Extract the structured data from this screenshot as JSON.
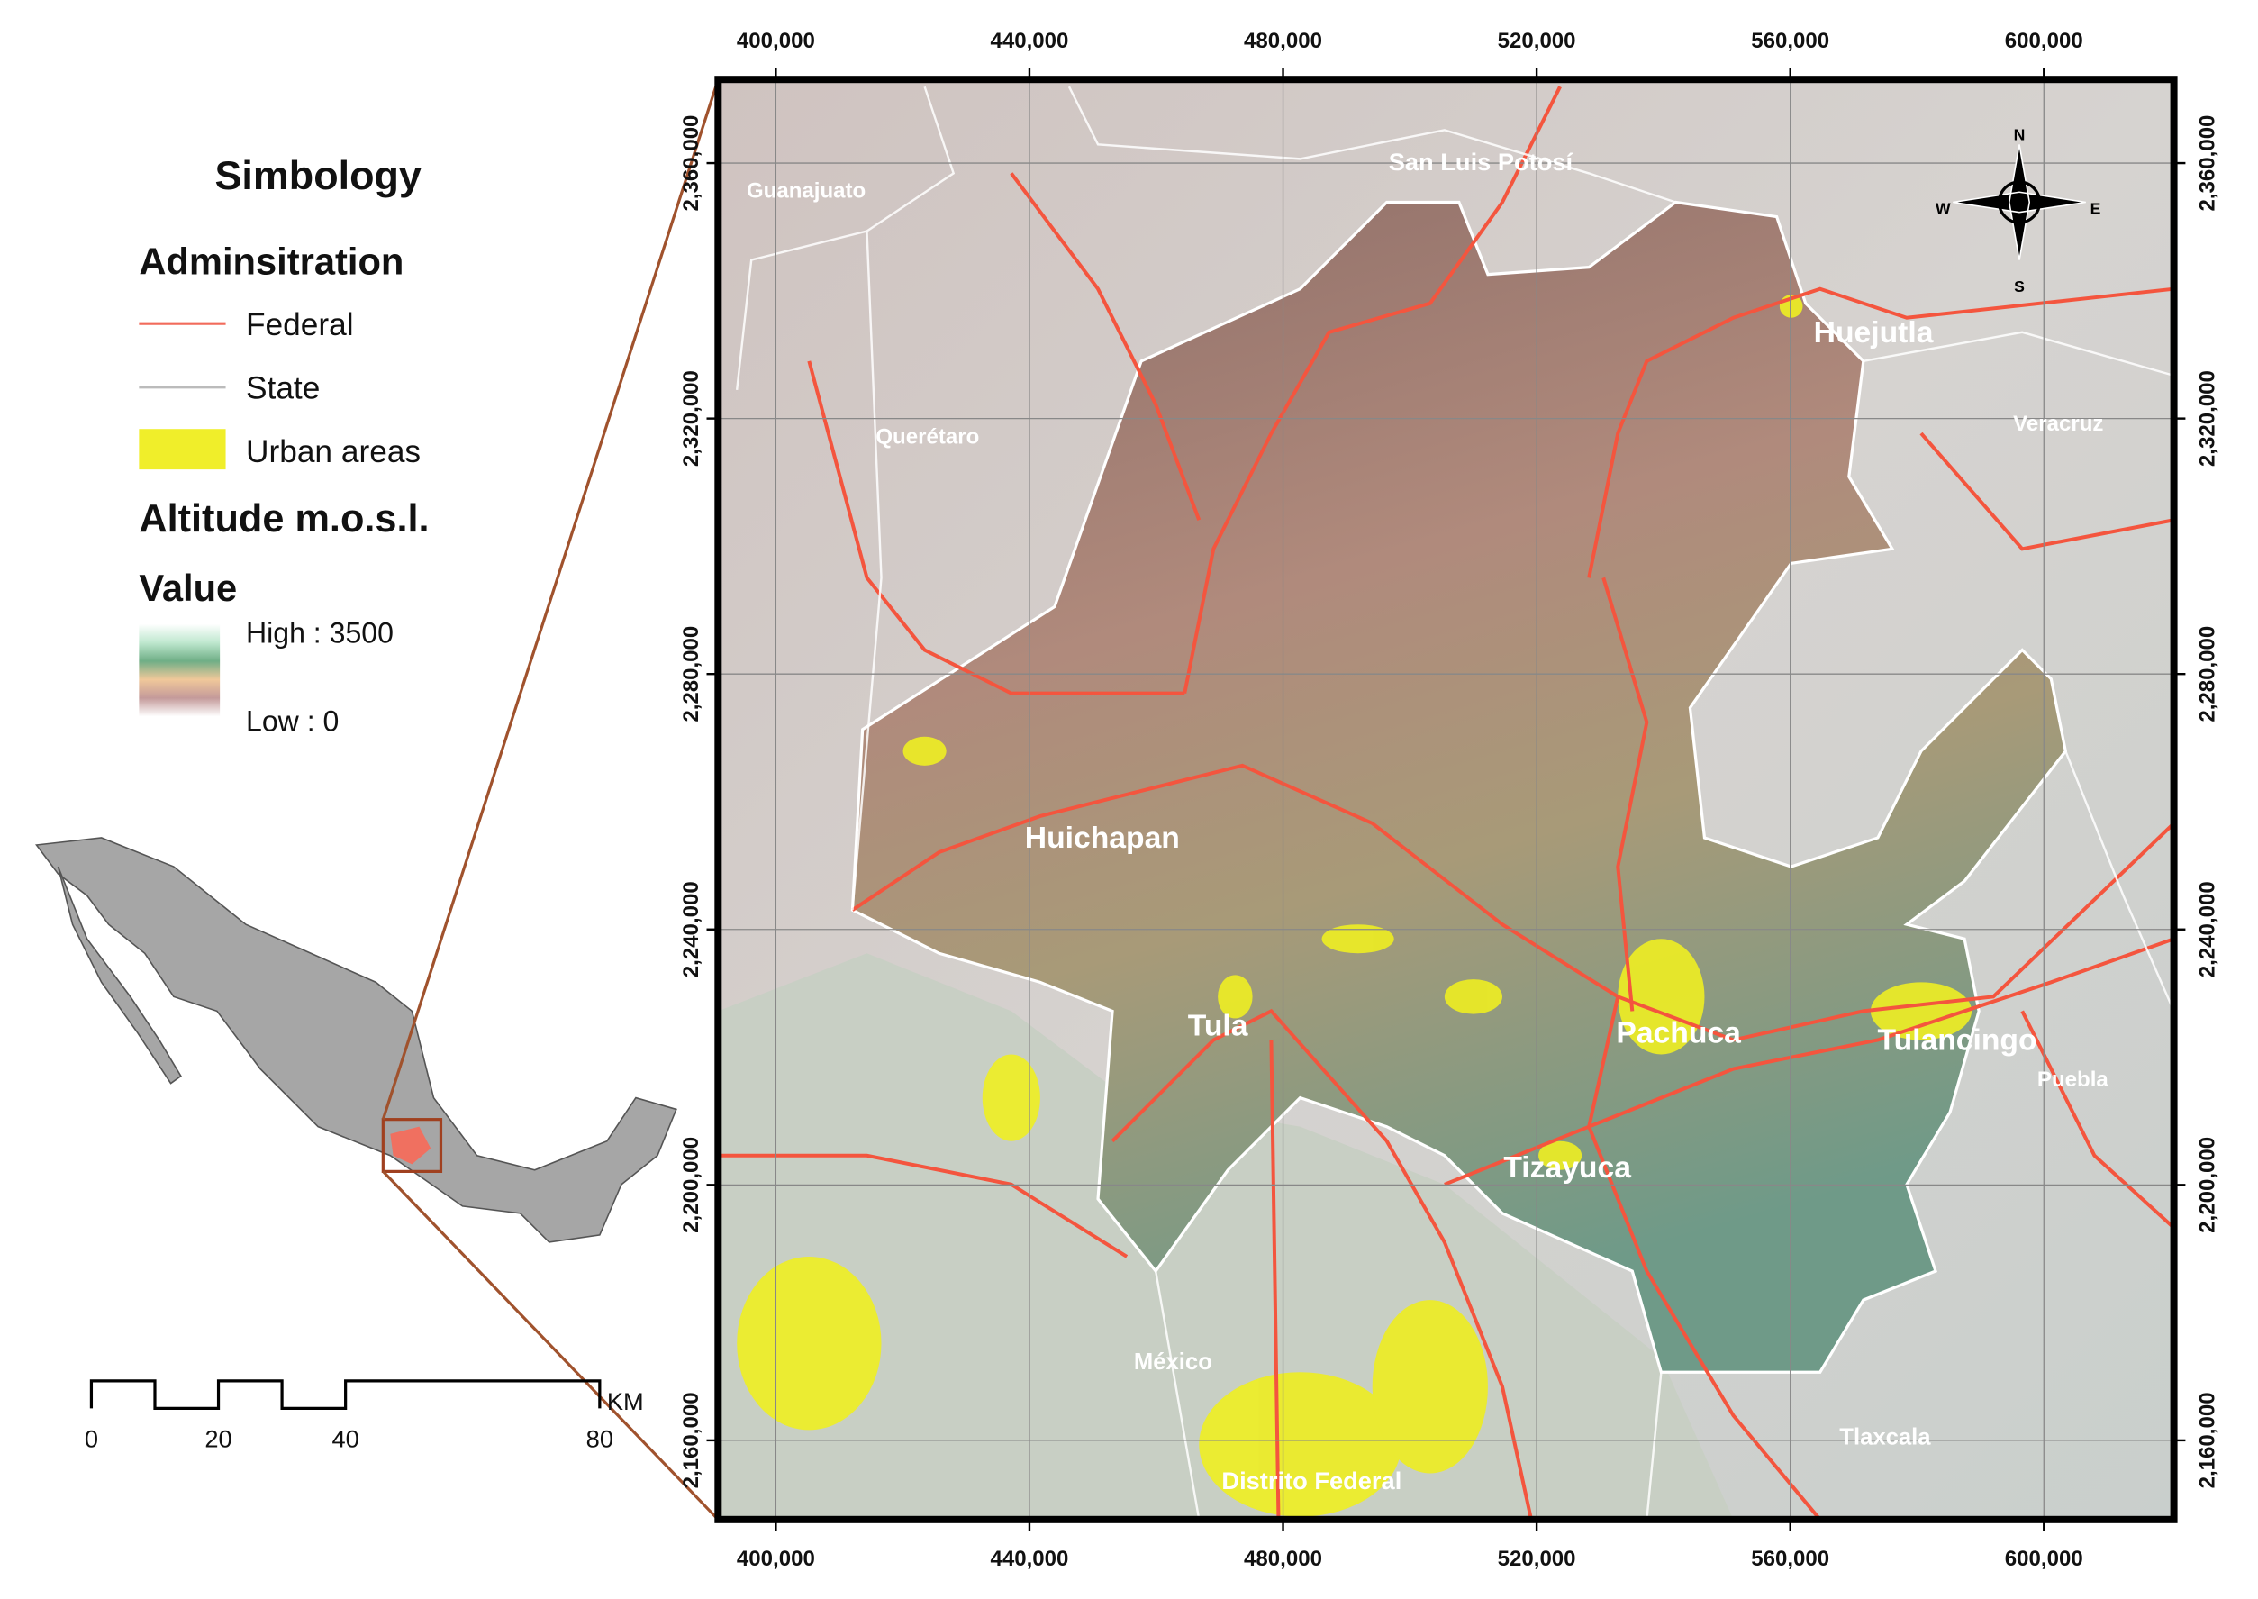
{
  "legend": {
    "title": "Simbology",
    "admin_heading": "Adminsitration",
    "items": [
      "Federal",
      "State",
      "Urban areas"
    ],
    "altitude_heading": "Altitude m.o.s.l.",
    "value_heading": "Value",
    "high": "High : 3500",
    "low": "Low : 0"
  },
  "map": {
    "xlim": [
      390900,
      620500
    ],
    "ylim": [
      2147600,
      2373100
    ],
    "xticks": [
      {
        "value": 400000,
        "label": "400,000"
      },
      {
        "value": 440000,
        "label": "440,000"
      },
      {
        "value": 480000,
        "label": "480,000"
      },
      {
        "value": 520000,
        "label": "520,000"
      },
      {
        "value": 560000,
        "label": "560,000"
      },
      {
        "value": 600000,
        "label": "600,000"
      }
    ],
    "yticks": [
      {
        "value": 2160000,
        "label": "2,160,000"
      },
      {
        "value": 2200000,
        "label": "2,200,000"
      },
      {
        "value": 2240000,
        "label": "2,240,000"
      },
      {
        "value": 2280000,
        "label": "2,280,000"
      },
      {
        "value": 2320000,
        "label": "2,320,000"
      },
      {
        "value": 2360000,
        "label": "2,360,000"
      }
    ],
    "places": [
      "Guanajuato",
      "San Luis Potosí",
      "Querétaro",
      "Huejutla",
      "Veracruz",
      "Huichapan",
      "Tula",
      "Pachuca",
      "Tulancingo",
      "Puebla",
      "Tizayuca",
      "México",
      "Tlaxcala",
      "Distrito Federal"
    ],
    "compass": [
      "N",
      "S",
      "E",
      "W"
    ]
  },
  "scale_bar": {
    "labels": [
      "0",
      "20",
      "40",
      "80"
    ],
    "unit": "KM"
  }
}
